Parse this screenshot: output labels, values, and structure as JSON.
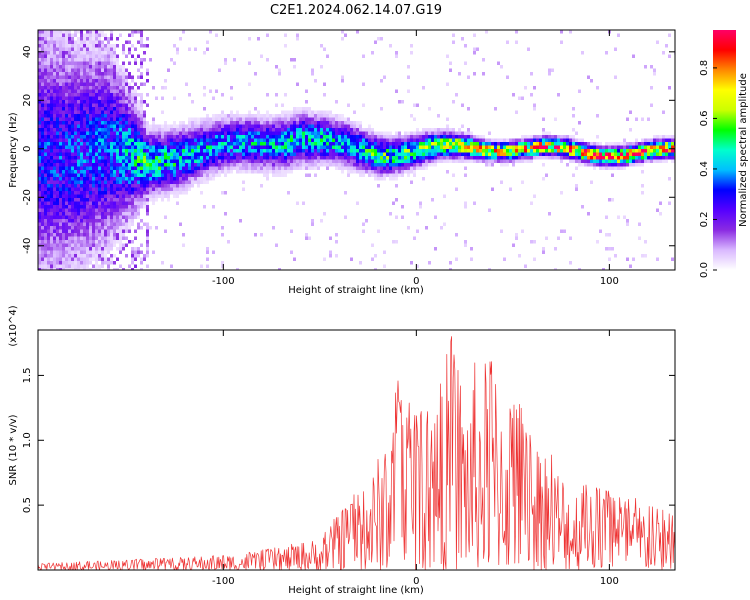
{
  "page": {
    "title": "C2E1.2024.062.14.07.G19"
  },
  "chart_data": [
    {
      "type": "heatmap",
      "title": "C2E1.2024.062.14.07.G19",
      "xlabel": "Height of straight line (km)",
      "ylabel": "Frequency (Hz)",
      "xlim": [
        -196,
        134
      ],
      "ylim": [
        -50,
        49
      ],
      "x_ticks": [
        -100,
        0,
        100
      ],
      "x_tick_labels": [
        "-100",
        "0",
        "100"
      ],
      "y_ticks": [
        -40,
        -20,
        0,
        20,
        40
      ],
      "y_tick_labels": [
        "-40",
        "-20",
        "0",
        "20",
        "40"
      ],
      "colorbar": {
        "label": "Normalized spectral amplitude",
        "range": [
          0,
          0.95
        ],
        "ticks": [
          0.0,
          0.2,
          0.4,
          0.6,
          0.8
        ],
        "tick_labels": [
          "0.0",
          "0.2",
          "0.4",
          "0.6",
          "0.8"
        ],
        "colormap": [
          "#ffffff",
          "#d9b8ff",
          "#8a2be2",
          "#5500ff",
          "#0000ff",
          "#00bfff",
          "#00ffcc",
          "#00ff00",
          "#ccff00",
          "#ffff00",
          "#ff8800",
          "#ff0000",
          "#ff0066"
        ]
      },
      "ridge": [
        {
          "x": -196,
          "center": 0,
          "spread": 40,
          "amp": 0.3
        },
        {
          "x": -160,
          "center": 0,
          "spread": 30,
          "amp": 0.35
        },
        {
          "x": -140,
          "center": -5,
          "spread": 10,
          "amp": 0.5
        },
        {
          "x": -100,
          "center": 0,
          "spread": 8,
          "amp": 0.4
        },
        {
          "x": -60,
          "center": 6,
          "spread": 8,
          "amp": 0.45
        },
        {
          "x": -40,
          "center": 3,
          "spread": 7,
          "amp": 0.45
        },
        {
          "x": -20,
          "center": 0,
          "spread": 6,
          "amp": 0.5
        },
        {
          "x": 0,
          "center": 0,
          "spread": 5,
          "amp": 0.55
        },
        {
          "x": 40,
          "center": 0,
          "spread": 3,
          "amp": 0.75
        },
        {
          "x": 100,
          "center": 0,
          "spread": 3,
          "amp": 0.85
        },
        {
          "x": 134,
          "center": 0,
          "spread": 3,
          "amp": 0.8
        }
      ]
    },
    {
      "type": "line",
      "xlabel": "Height of straight line (km)",
      "ylabel": "SNR (10 * v/v)",
      "y_multiplier_label": "(x10^4)",
      "xlim": [
        -196,
        134
      ],
      "ylim": [
        0,
        1.85
      ],
      "x_ticks": [
        -100,
        0,
        100
      ],
      "x_tick_labels": [
        "-100",
        "0",
        "100"
      ],
      "y_ticks": [
        0.5,
        1.0,
        1.5
      ],
      "y_tick_labels": [
        "0.5",
        "1.0",
        "1.5"
      ],
      "series": [
        {
          "color": "#ee3333",
          "envelope": [
            {
              "x": -196,
              "y": 0.05
            },
            {
              "x": -150,
              "y": 0.08
            },
            {
              "x": -120,
              "y": 0.1
            },
            {
              "x": -90,
              "y": 0.13
            },
            {
              "x": -70,
              "y": 0.18
            },
            {
              "x": -50,
              "y": 0.25
            },
            {
              "x": -35,
              "y": 0.55
            },
            {
              "x": -25,
              "y": 0.7
            },
            {
              "x": -15,
              "y": 1.05
            },
            {
              "x": -10,
              "y": 1.5
            },
            {
              "x": 0,
              "y": 1.25
            },
            {
              "x": 10,
              "y": 1.3
            },
            {
              "x": 18,
              "y": 1.85
            },
            {
              "x": 25,
              "y": 1.5
            },
            {
              "x": 33,
              "y": 1.65
            },
            {
              "x": 45,
              "y": 1.6
            },
            {
              "x": 52,
              "y": 1.35
            },
            {
              "x": 60,
              "y": 1.05
            },
            {
              "x": 70,
              "y": 0.9
            },
            {
              "x": 80,
              "y": 0.7
            },
            {
              "x": 100,
              "y": 0.62
            },
            {
              "x": 115,
              "y": 0.55
            },
            {
              "x": 125,
              "y": 0.48
            },
            {
              "x": 134,
              "y": 0.45
            }
          ]
        }
      ]
    }
  ]
}
